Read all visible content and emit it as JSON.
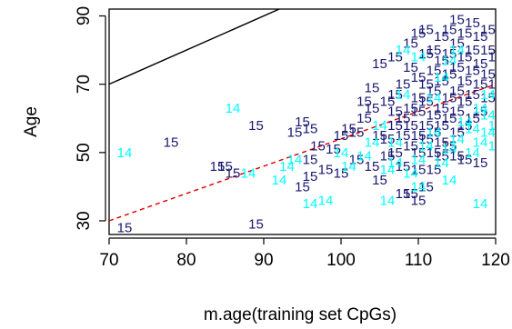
{
  "chart_data": {
    "type": "scatter",
    "title": "",
    "xlabel": "m.age(training set CpGs)",
    "ylabel": "Age",
    "xlim": [
      70,
      120
    ],
    "ylim": [
      26,
      92
    ],
    "x_ticks": [
      "70",
      "80",
      "90",
      "100",
      "110",
      "120"
    ],
    "y_ticks": [
      "30",
      "50",
      "70",
      "90"
    ],
    "grid": false,
    "legend": "none",
    "marker": "text label",
    "colors": {
      "15": "#191970",
      "14": "#00ffff"
    },
    "series": [
      {
        "label": "15",
        "points": [
          [
            72,
            28
          ],
          [
            78,
            53
          ],
          [
            84,
            46
          ],
          [
            85,
            46
          ],
          [
            86,
            44
          ],
          [
            89,
            58
          ],
          [
            89,
            29
          ],
          [
            94,
            56
          ],
          [
            95,
            59
          ],
          [
            96,
            57
          ],
          [
            96,
            43
          ],
          [
            97,
            52
          ],
          [
            98,
            45
          ],
          [
            99,
            51
          ],
          [
            100,
            55
          ],
          [
            101,
            57
          ],
          [
            102,
            56
          ],
          [
            103,
            60
          ],
          [
            103,
            65
          ],
          [
            104,
            63
          ],
          [
            105,
            55
          ],
          [
            105,
            76
          ],
          [
            105,
            42
          ],
          [
            106,
            49
          ],
          [
            106,
            65
          ],
          [
            106,
            54
          ],
          [
            107,
            50
          ],
          [
            107,
            62
          ],
          [
            107,
            67
          ],
          [
            107,
            58
          ],
          [
            108,
            55
          ],
          [
            108,
            60
          ],
          [
            108,
            70
          ],
          [
            108,
            46
          ],
          [
            109,
            52
          ],
          [
            109,
            58
          ],
          [
            109,
            63
          ],
          [
            109,
            75
          ],
          [
            109,
            82
          ],
          [
            109,
            38
          ],
          [
            110,
            50
          ],
          [
            110,
            55
          ],
          [
            110,
            62
          ],
          [
            110,
            66
          ],
          [
            110,
            72
          ],
          [
            110,
            85
          ],
          [
            110,
            45
          ],
          [
            111,
            54
          ],
          [
            111,
            58
          ],
          [
            111,
            65
          ],
          [
            111,
            70
          ],
          [
            111,
            79
          ],
          [
            111,
            86
          ],
          [
            112,
            50
          ],
          [
            112,
            56
          ],
          [
            112,
            61
          ],
          [
            112,
            68
          ],
          [
            112,
            74
          ],
          [
            112,
            80
          ],
          [
            112,
            45
          ],
          [
            113,
            53
          ],
          [
            113,
            58
          ],
          [
            113,
            63
          ],
          [
            113,
            71
          ],
          [
            113,
            77
          ],
          [
            113,
            84
          ],
          [
            114,
            52
          ],
          [
            114,
            60
          ],
          [
            114,
            66
          ],
          [
            114,
            73
          ],
          [
            114,
            79
          ],
          [
            114,
            86
          ],
          [
            115,
            56
          ],
          [
            115,
            62
          ],
          [
            115,
            68
          ],
          [
            115,
            75
          ],
          [
            115,
            82
          ],
          [
            115,
            89
          ],
          [
            115,
            49
          ],
          [
            116,
            58
          ],
          [
            116,
            65
          ],
          [
            116,
            71
          ],
          [
            116,
            78
          ],
          [
            116,
            85
          ],
          [
            117,
            60
          ],
          [
            117,
            67
          ],
          [
            117,
            74
          ],
          [
            117,
            80
          ],
          [
            117,
            88
          ],
          [
            118,
            62
          ],
          [
            118,
            70
          ],
          [
            118,
            76
          ],
          [
            118,
            84
          ],
          [
            119,
            66
          ],
          [
            119,
            73
          ],
          [
            119,
            80
          ],
          [
            119,
            86
          ],
          [
            120,
            70
          ],
          [
            120,
            78
          ],
          [
            104,
            46
          ],
          [
            102,
            48
          ],
          [
            100,
            44
          ],
          [
            96,
            48
          ],
          [
            95,
            40
          ],
          [
            108,
            38
          ],
          [
            111,
            40
          ],
          [
            113,
            49
          ],
          [
            116,
            48
          ],
          [
            118,
            47
          ],
          [
            104,
            69
          ],
          [
            107,
            78
          ],
          [
            110,
            36
          ]
        ]
      },
      {
        "label": "14",
        "points": [
          [
            72,
            50
          ],
          [
            86,
            63
          ],
          [
            88,
            44
          ],
          [
            92,
            42
          ],
          [
            93,
            46
          ],
          [
            94,
            48
          ],
          [
            96,
            35
          ],
          [
            98,
            36
          ],
          [
            100,
            50
          ],
          [
            101,
            46
          ],
          [
            103,
            49
          ],
          [
            104,
            53
          ],
          [
            105,
            58
          ],
          [
            106,
            36
          ],
          [
            106,
            45
          ],
          [
            107,
            47
          ],
          [
            107,
            53
          ],
          [
            108,
            67
          ],
          [
            109,
            44
          ],
          [
            110,
            40
          ],
          [
            110,
            48
          ],
          [
            111,
            52
          ],
          [
            112,
            56
          ],
          [
            113,
            47
          ],
          [
            114,
            42
          ],
          [
            114,
            51
          ],
          [
            115,
            54
          ],
          [
            116,
            59
          ],
          [
            117,
            50
          ],
          [
            117,
            57
          ],
          [
            118,
            63
          ],
          [
            118,
            53
          ],
          [
            119,
            56
          ],
          [
            119,
            61
          ],
          [
            120,
            58
          ],
          [
            120,
            52
          ],
          [
            112,
            66
          ],
          [
            113,
            72
          ],
          [
            114,
            77
          ],
          [
            115,
            80
          ],
          [
            118,
            35
          ],
          [
            119,
            67
          ],
          [
            110,
            78
          ],
          [
            108,
            80
          ]
        ]
      }
    ],
    "lines": [
      {
        "style": "solid",
        "color": "#000000",
        "from": [
          70,
          70
        ],
        "to": [
          120,
          120
        ]
      },
      {
        "style": "dashed",
        "color": "#e00000",
        "from": [
          70,
          30
        ],
        "to": [
          120,
          70
        ]
      }
    ]
  }
}
